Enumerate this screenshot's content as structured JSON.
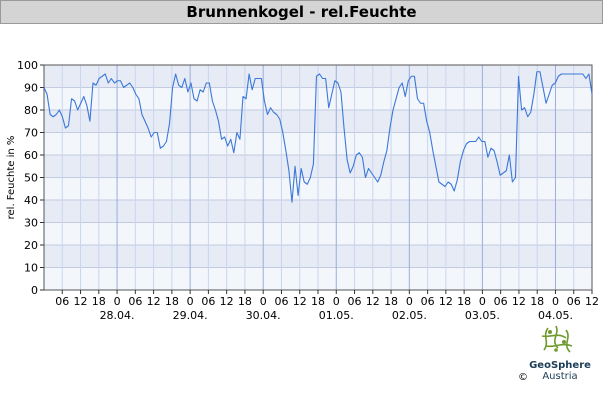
{
  "chart_data": {
    "type": "line",
    "title": "Brunnenkogel - rel.Feuchte",
    "ylabel": "rel. Feuchte in %",
    "xlabel": "",
    "ylim": [
      0,
      100
    ],
    "y_ticks": [
      "0",
      "10",
      "20",
      "30",
      "40",
      "50",
      "60",
      "70",
      "80",
      "90",
      "100"
    ],
    "hour_ticks": [
      "06",
      "12",
      "18",
      "0",
      "06",
      "12",
      "18",
      "0",
      "06",
      "12",
      "18",
      "0",
      "06",
      "12",
      "18",
      "0",
      "06",
      "12",
      "18",
      "0",
      "06",
      "12",
      "18",
      "0",
      "06",
      "12",
      "18",
      "0",
      "06",
      "12"
    ],
    "date_labels": [
      "28.04.",
      "29.04.",
      "30.04.",
      "01.05.",
      "02.05.",
      "03.05.",
      "04.05."
    ],
    "grid": true,
    "series_color": "#3c78d8",
    "x_hours_start": 0,
    "series": [
      {
        "values": [
          90,
          87,
          78,
          77,
          78,
          80,
          77,
          72,
          73,
          85,
          84,
          80,
          83,
          86,
          82,
          75,
          92,
          91,
          94,
          95,
          96,
          92,
          94,
          92,
          93,
          93,
          90,
          91,
          92,
          90,
          87,
          85,
          78,
          75,
          72,
          68,
          70,
          70,
          63,
          64,
          66,
          74,
          90,
          96,
          91,
          90,
          94,
          88,
          92,
          85,
          84,
          89,
          88,
          92,
          92,
          84,
          80,
          75,
          67,
          68,
          64,
          67,
          61,
          70,
          67,
          86,
          85,
          96,
          89,
          94,
          94,
          94,
          84,
          78,
          81,
          79,
          78,
          76,
          70,
          62,
          53,
          39,
          55,
          42,
          54,
          48,
          47,
          50,
          56,
          95,
          96,
          94,
          94,
          81,
          87,
          93,
          92,
          88,
          72,
          58,
          52,
          55,
          60,
          61,
          59,
          50,
          54,
          52,
          50,
          48,
          51,
          57,
          62,
          72,
          80,
          85,
          90,
          92,
          86,
          93,
          95,
          95,
          85,
          83,
          83,
          75,
          70,
          62,
          55,
          48,
          47,
          46,
          48,
          47,
          44,
          49,
          57,
          62,
          65,
          66,
          66,
          66,
          68,
          66,
          66,
          59,
          63,
          62,
          57,
          51,
          52,
          53,
          60,
          48,
          50,
          95,
          80,
          81,
          77,
          79,
          87,
          97,
          97,
          90,
          83,
          87,
          91,
          92,
          95,
          96,
          96,
          96,
          96,
          96,
          96,
          96,
          96,
          94,
          96,
          87
        ]
      }
    ]
  },
  "footer": {
    "logo_brand": "GeoSphere",
    "logo_country": "Austria",
    "copyright": "©"
  }
}
